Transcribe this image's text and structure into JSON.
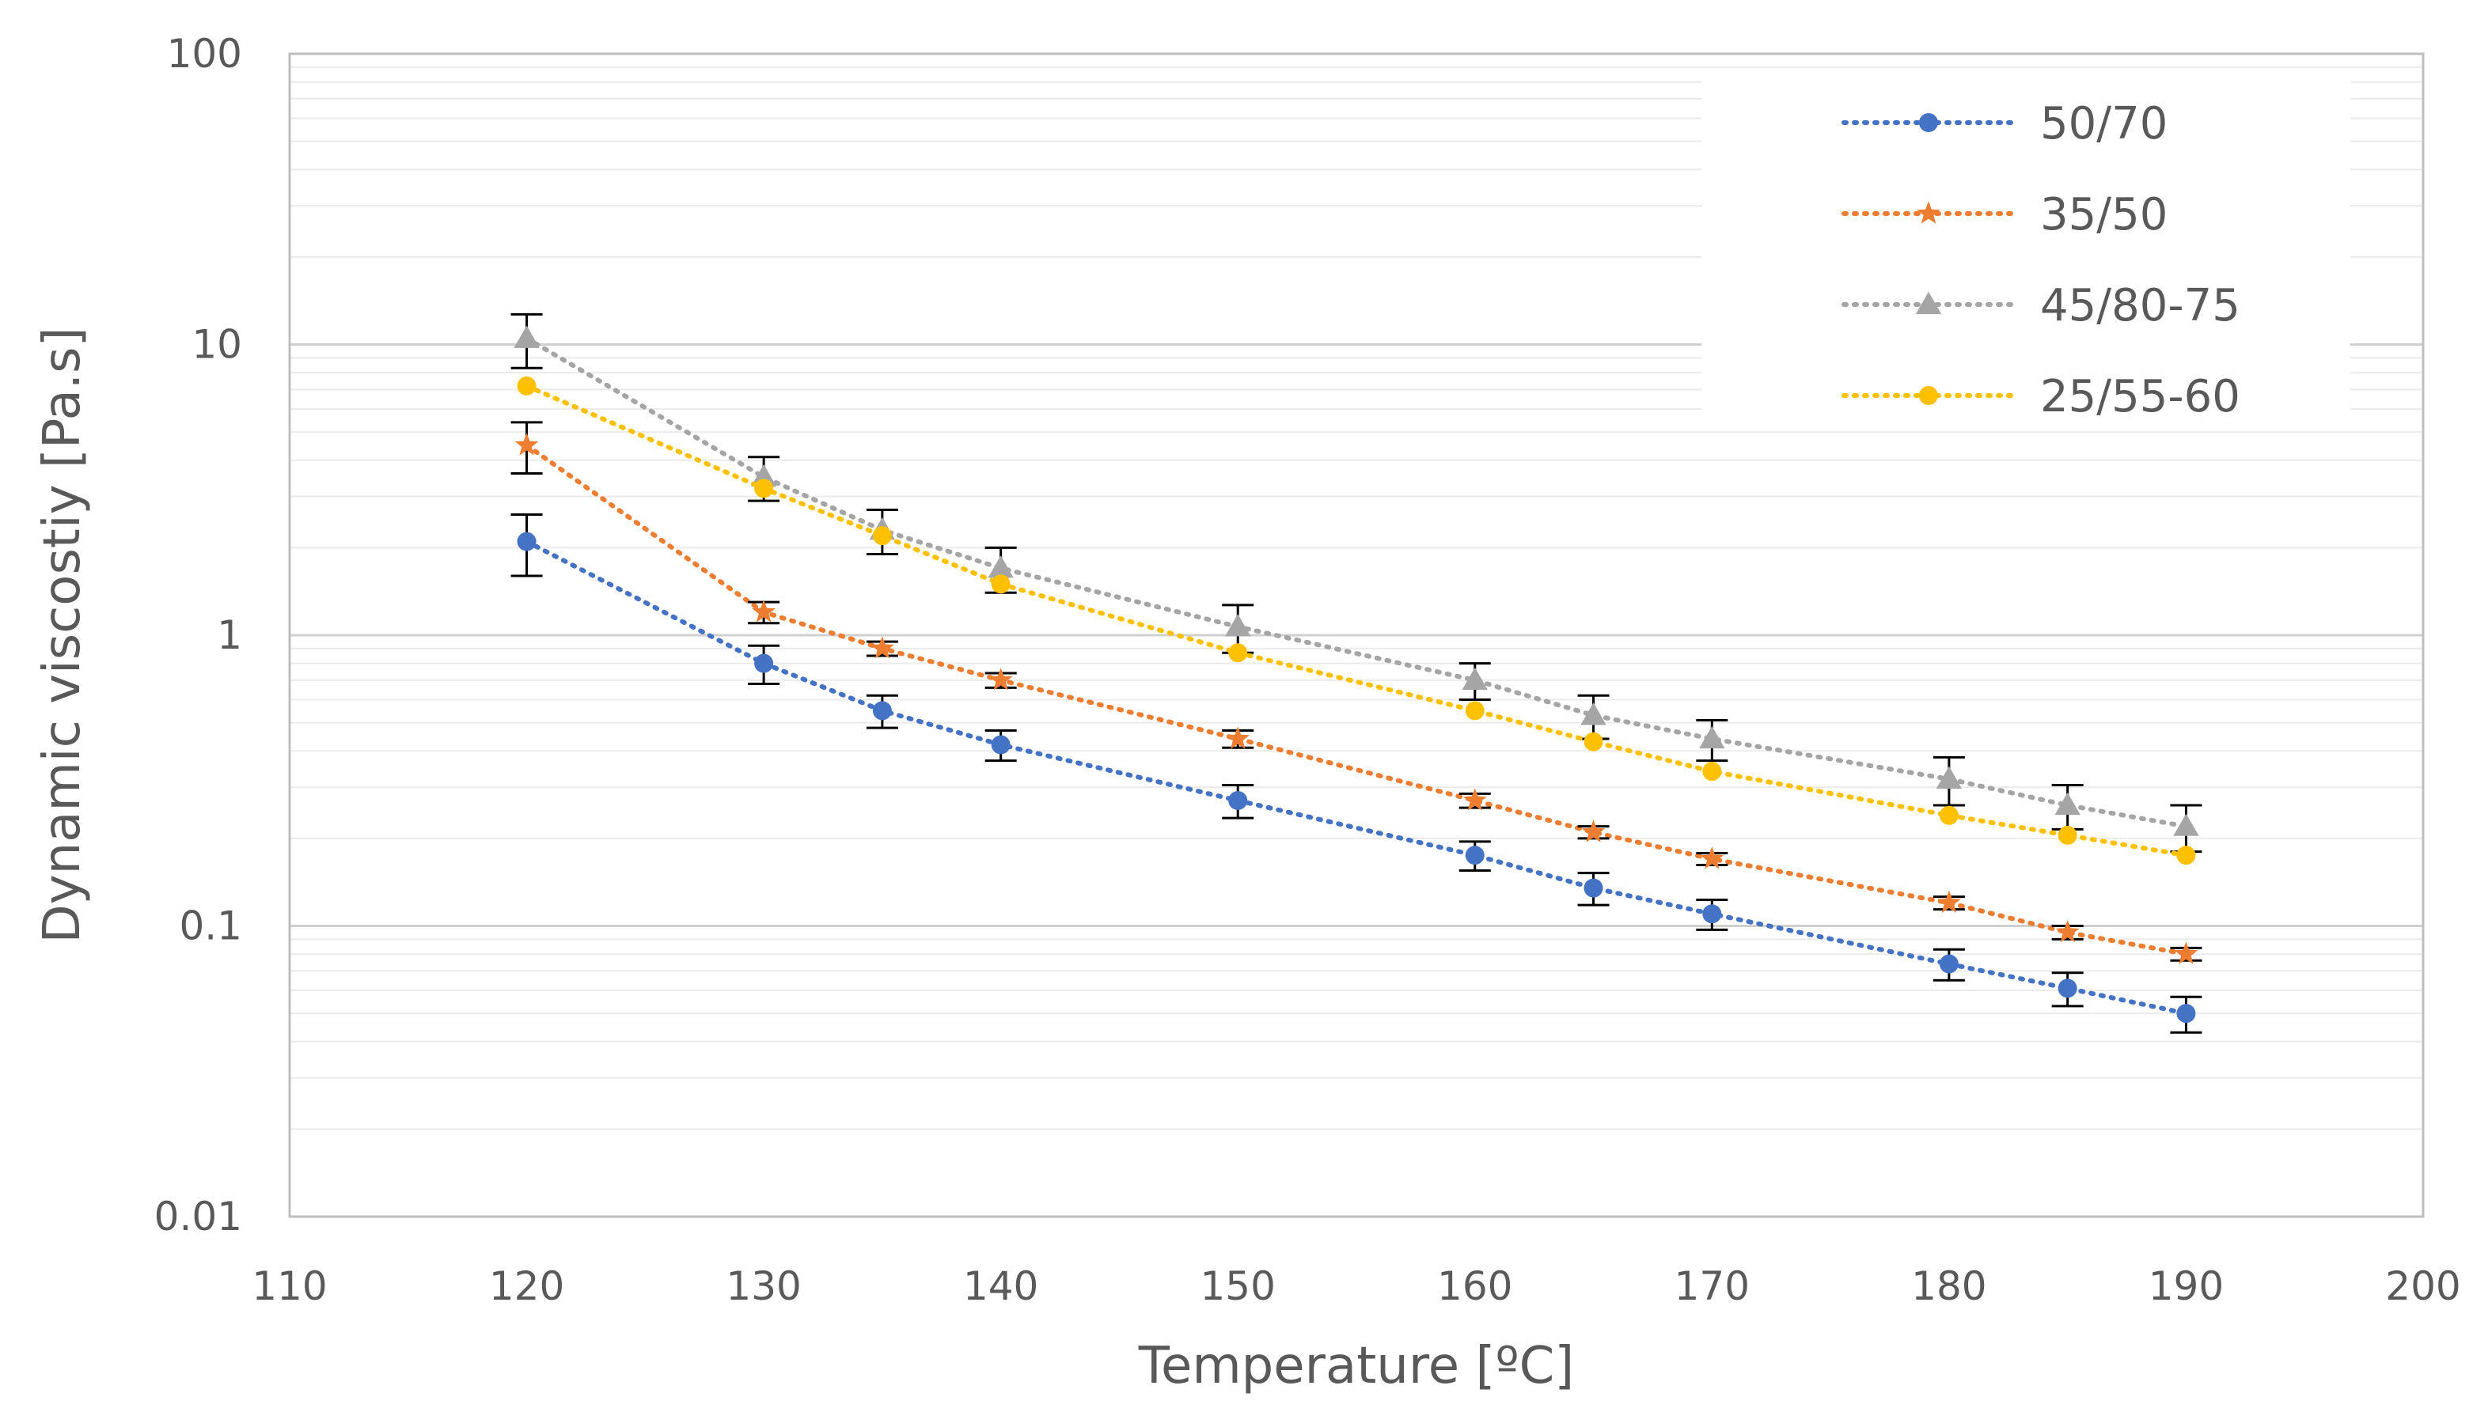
{
  "chart_data": {
    "type": "scatter",
    "title": "",
    "xlabel": "Temperature [ºC]",
    "ylabel": "Dynamic viscostiy [Pa.s]",
    "xlim": [
      110,
      200
    ],
    "ylim": [
      0.01,
      100
    ],
    "yscale": "log",
    "x_ticks": [
      "110",
      "120",
      "130",
      "140",
      "150",
      "160",
      "170",
      "180",
      "190",
      "200"
    ],
    "y_ticks": [
      "0.01",
      "0.1",
      "1",
      "10",
      "100"
    ],
    "grid": "horizontal major and minor",
    "legend_position": "top-right",
    "series": [
      {
        "name": "50/70",
        "color": "#4472C4",
        "marker": "circle",
        "line": "dotted",
        "x": [
          120,
          130,
          135,
          140,
          150,
          160,
          165,
          170,
          180,
          185,
          190
        ],
        "y": [
          2.1,
          0.8,
          0.55,
          0.42,
          0.27,
          0.175,
          0.135,
          0.11,
          0.074,
          0.061,
          0.05
        ],
        "error": [
          0.5,
          0.12,
          0.07,
          0.05,
          0.035,
          0.02,
          0.017,
          0.013,
          0.009,
          0.008,
          0.007
        ]
      },
      {
        "name": "35/50",
        "color": "#ED7D31",
        "marker": "star",
        "line": "dotted",
        "x": [
          120,
          130,
          135,
          140,
          150,
          160,
          165,
          170,
          180,
          185,
          190
        ],
        "y": [
          4.5,
          1.2,
          0.9,
          0.7,
          0.44,
          0.27,
          0.21,
          0.17,
          0.12,
          0.095,
          0.08
        ],
        "error": [
          0.9,
          0.1,
          0.05,
          0.04,
          0.03,
          0.015,
          0.01,
          0.008,
          0.006,
          0.005,
          0.004
        ]
      },
      {
        "name": "45/80-75",
        "color": "#A5A5A5",
        "marker": "triangle",
        "line": "dotted",
        "x": [
          120,
          130,
          135,
          140,
          150,
          160,
          165,
          170,
          180,
          185,
          190
        ],
        "y": [
          10.5,
          3.5,
          2.3,
          1.7,
          1.07,
          0.7,
          0.53,
          0.44,
          0.32,
          0.26,
          0.22
        ],
        "error": [
          2.2,
          0.6,
          0.4,
          0.3,
          0.2,
          0.1,
          0.09,
          0.07,
          0.06,
          0.045,
          0.04
        ]
      },
      {
        "name": "25/55-60",
        "color": "#FFC000",
        "marker": "circle",
        "line": "dotted",
        "x": [
          120,
          130,
          135,
          140,
          150,
          160,
          165,
          170,
          180,
          185,
          190
        ],
        "y": [
          7.2,
          3.2,
          2.2,
          1.5,
          0.87,
          0.55,
          0.43,
          0.34,
          0.24,
          0.205,
          0.175
        ],
        "error": [
          0,
          0,
          0,
          0,
          0,
          0,
          0,
          0,
          0,
          0,
          0
        ]
      }
    ]
  }
}
